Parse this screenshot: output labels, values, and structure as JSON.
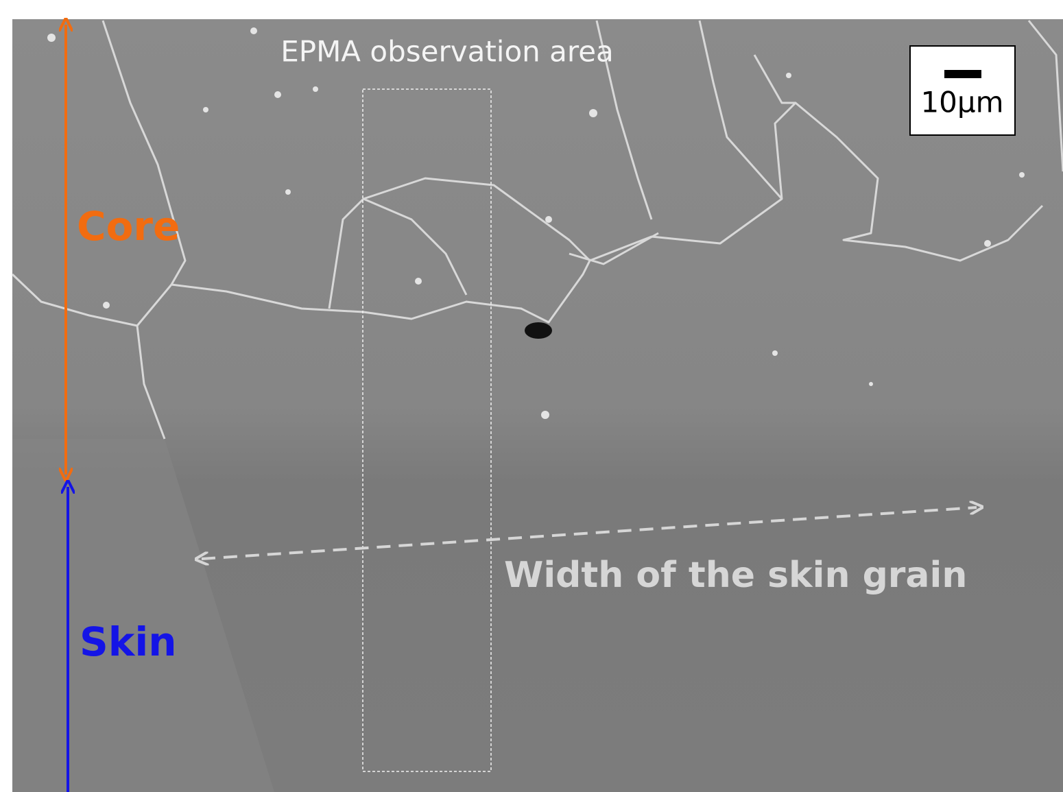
{
  "annotations": {
    "observation_area": "EPMA observation area",
    "scale_bar": "10μm",
    "core": "Core",
    "skin": "Skin",
    "skin_width": "Width of the skin grain"
  }
}
